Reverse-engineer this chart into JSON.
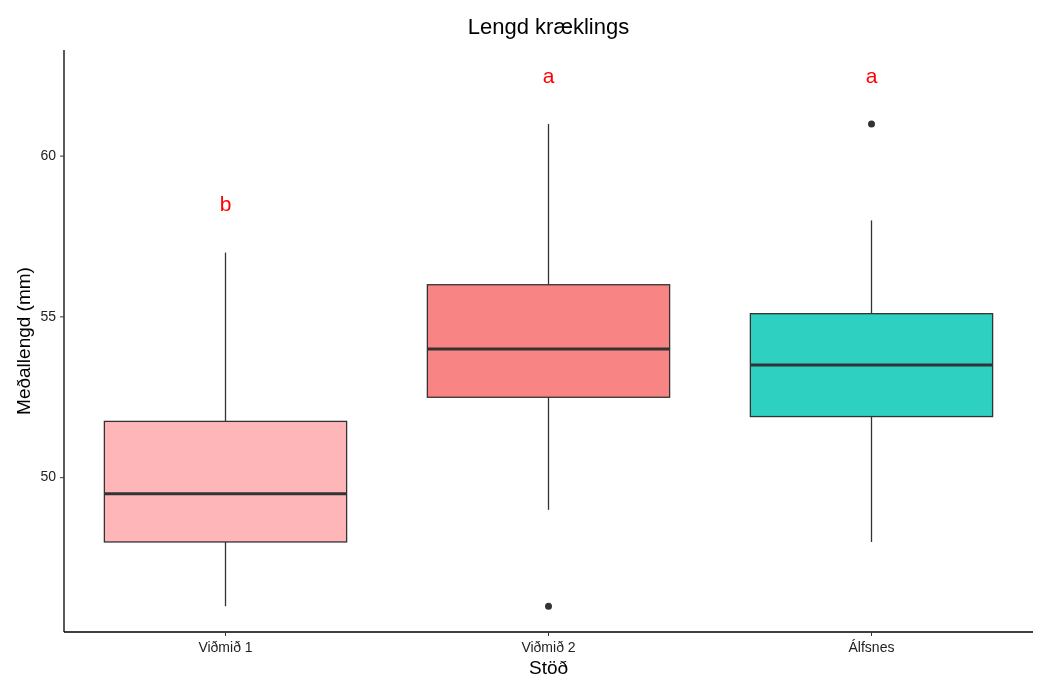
{
  "chart_data": {
    "type": "box",
    "title": "Lengd kræklings",
    "xlabel": "Stöð",
    "ylabel": "Meðallengd (mm)",
    "categories": [
      "Viðmið 1",
      "Viðmið 2",
      "Álfsnes"
    ],
    "colors": [
      "#ffb6b9",
      "#f88584",
      "#2ed1c1"
    ],
    "boxes": [
      {
        "low": 46,
        "q1": 48,
        "median": 49.5,
        "q3": 51.75,
        "high": 57
      },
      {
        "low": 49,
        "q1": 52.5,
        "median": 54,
        "q3": 56,
        "high": 61,
        "outliers": [
          46
        ]
      },
      {
        "low": 48,
        "q1": 51.9,
        "median": 53.5,
        "q3": 55.1,
        "high": 58,
        "outliers": [
          61
        ]
      }
    ],
    "ylim": [
      45.2,
      63.3
    ],
    "yticks": [
      50,
      55,
      60
    ],
    "annotations": [
      "b",
      "a",
      "a"
    ]
  }
}
